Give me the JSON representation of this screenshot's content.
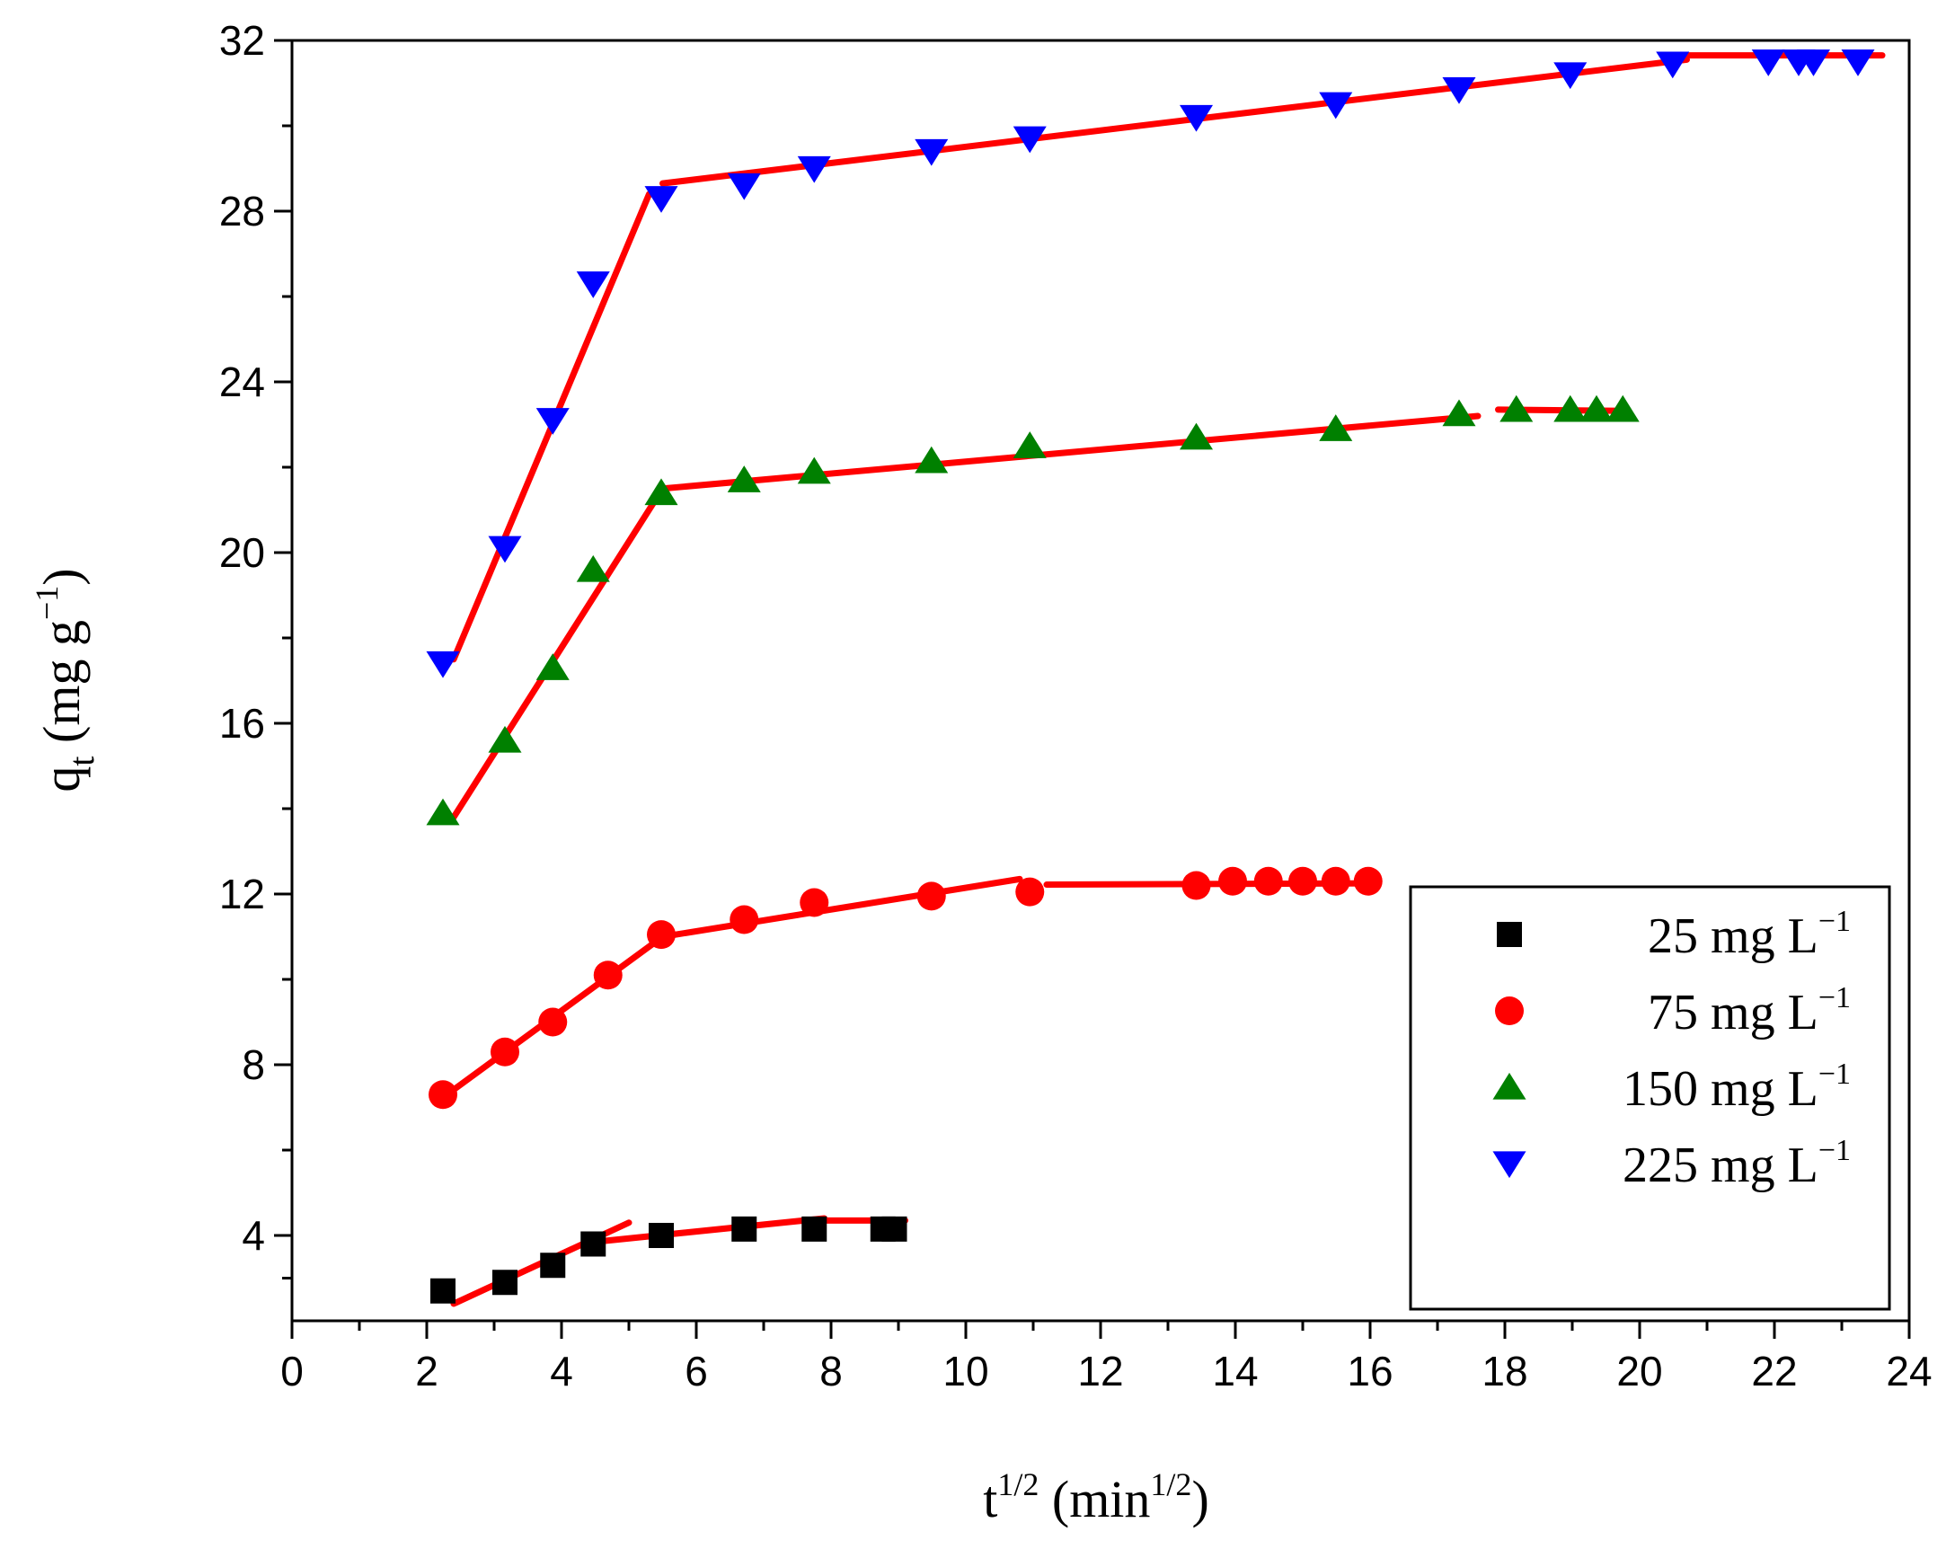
{
  "chart_data": {
    "type": "scatter",
    "title": "",
    "xlabel": {
      "base": "t",
      "sup": "1/2",
      "unit_open": " (min",
      "unit_sup": "1/2",
      "unit_close": ")"
    },
    "ylabel": {
      "base": "q",
      "sub": "t",
      "unit_open": " (mg g",
      "unit_sup": "−1",
      "unit_close": ")"
    },
    "xlim": [
      0,
      24
    ],
    "ylim": [
      2,
      32
    ],
    "xticks": [
      0,
      2,
      4,
      6,
      8,
      10,
      12,
      14,
      16,
      18,
      20,
      22,
      24
    ],
    "yticks": [
      4,
      8,
      12,
      16,
      20,
      24,
      28,
      32
    ],
    "xtick_labels": [
      "0",
      "2",
      "4",
      "6",
      "8",
      "10",
      "12",
      "14",
      "16",
      "18",
      "20",
      "22",
      "24"
    ],
    "ytick_labels": [
      "4",
      "8",
      "12",
      "16",
      "20",
      "24",
      "28",
      "32"
    ],
    "fit_color": "#ff0000",
    "legend_position": "bottom-right",
    "series": [
      {
        "name": "25 mg L−1",
        "legend": {
          "value": "25",
          "unit": " mg L",
          "sup": "−1"
        },
        "marker": "square",
        "color": "#000000",
        "x": [
          2.24,
          3.16,
          3.87,
          4.47,
          5.48,
          6.71,
          7.75,
          8.77,
          8.94
        ],
        "y": [
          2.7,
          2.9,
          3.3,
          3.8,
          4.0,
          4.15,
          4.15,
          4.15,
          4.15
        ],
        "fits": [
          [
            [
              2.4,
              2.4
            ],
            [
              5.0,
              4.3
            ]
          ],
          [
            [
              4.5,
              3.85
            ],
            [
              7.9,
              4.4
            ]
          ],
          [
            [
              7.9,
              4.35
            ],
            [
              9.1,
              4.35
            ]
          ]
        ]
      },
      {
        "name": "75 mg L−1",
        "legend": {
          "value": "75",
          "unit": " mg L",
          "sup": "−1"
        },
        "marker": "circle",
        "color": "#ff0000",
        "x": [
          2.24,
          3.16,
          3.87,
          4.69,
          5.48,
          6.71,
          7.75,
          9.49,
          10.95,
          13.42,
          13.96,
          14.49,
          15.0,
          15.49,
          15.97
        ],
        "y": [
          7.3,
          8.3,
          9.0,
          10.1,
          11.05,
          11.4,
          11.8,
          11.95,
          12.05,
          12.2,
          12.3,
          12.3,
          12.3,
          12.3,
          12.3
        ],
        "fits": [
          [
            [
              2.3,
              7.3
            ],
            [
              5.5,
              11.0
            ]
          ],
          [
            [
              5.5,
              11.0
            ],
            [
              10.8,
              12.35
            ]
          ],
          [
            [
              11.2,
              12.22
            ],
            [
              16.0,
              12.25
            ]
          ]
        ]
      },
      {
        "name": "150 mg L−1",
        "legend": {
          "value": "150",
          "unit": " mg L",
          "sup": "−1"
        },
        "marker": "triangle-up",
        "color": "#008000",
        "x": [
          2.24,
          3.16,
          3.87,
          4.47,
          5.48,
          6.71,
          7.75,
          9.49,
          10.95,
          13.42,
          15.49,
          17.32,
          18.17,
          18.97,
          19.36,
          19.75
        ],
        "y": [
          13.9,
          15.6,
          17.3,
          19.6,
          21.4,
          21.7,
          21.9,
          22.15,
          22.5,
          22.7,
          22.9,
          23.25,
          23.35,
          23.35,
          23.35,
          23.35
        ],
        "fits": [
          [
            [
              2.4,
              13.8
            ],
            [
              5.5,
              21.5
            ]
          ],
          [
            [
              5.5,
              21.5
            ],
            [
              17.6,
              23.2
            ]
          ],
          [
            [
              17.9,
              23.35
            ],
            [
              19.8,
              23.32
            ]
          ]
        ]
      },
      {
        "name": "225 mg L−1",
        "legend": {
          "value": "225",
          "unit": " mg L",
          "sup": "−1"
        },
        "marker": "triangle-down",
        "color": "#0000ff",
        "x": [
          2.24,
          3.16,
          3.87,
          4.47,
          5.48,
          6.71,
          7.75,
          9.49,
          10.95,
          13.42,
          15.49,
          17.32,
          18.97,
          20.49,
          21.91,
          22.36,
          22.58,
          23.24
        ],
        "y": [
          17.4,
          20.1,
          23.1,
          26.3,
          28.3,
          28.6,
          29.0,
          29.4,
          29.7,
          30.2,
          30.5,
          30.85,
          31.2,
          31.45,
          31.5,
          31.5,
          31.5,
          31.5
        ],
        "fits": [
          [
            [
              2.4,
              17.5
            ],
            [
              5.3,
              28.4
            ]
          ],
          [
            [
              5.5,
              28.65
            ],
            [
              20.7,
              31.55
            ]
          ],
          [
            [
              20.7,
              31.65
            ],
            [
              23.6,
              31.65
            ]
          ]
        ]
      }
    ]
  }
}
